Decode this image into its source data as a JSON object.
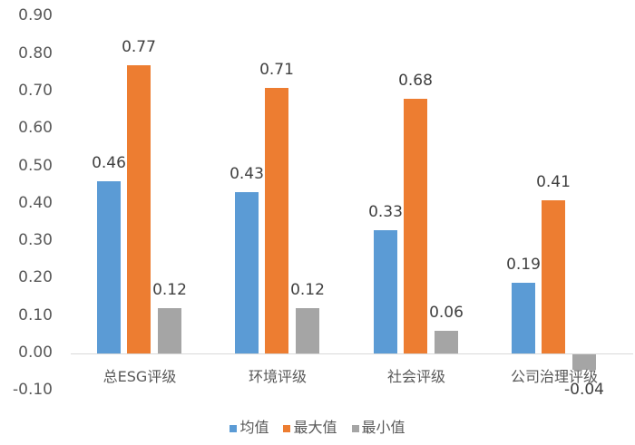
{
  "chart_data": {
    "type": "bar",
    "title": "",
    "xlabel": "",
    "ylabel": "",
    "ylim": [
      -0.1,
      0.9
    ],
    "yticks": [
      "0.90",
      "0.80",
      "0.70",
      "0.60",
      "0.50",
      "0.40",
      "0.30",
      "0.20",
      "0.10",
      "0.00",
      "-0.10"
    ],
    "categories": [
      "总ESG评级",
      "环境评级",
      "社会评级",
      "公司治理评级"
    ],
    "series": [
      {
        "name": "均值",
        "color": "#5b9bd5",
        "values": [
          0.46,
          0.43,
          0.33,
          0.19
        ],
        "labels": [
          "0.46",
          "0.43",
          "0.33",
          "0.19"
        ]
      },
      {
        "name": "最大值",
        "color": "#ed7d31",
        "values": [
          0.77,
          0.71,
          0.68,
          0.41
        ],
        "labels": [
          "0.77",
          "0.71",
          "0.68",
          "0.41"
        ]
      },
      {
        "name": "最小值",
        "color": "#a5a5a5",
        "values": [
          0.12,
          0.12,
          0.06,
          -0.04
        ],
        "labels": [
          "0.12",
          "0.12",
          "0.06",
          "-0.04"
        ]
      }
    ],
    "legend_position": "bottom",
    "grid": false
  }
}
